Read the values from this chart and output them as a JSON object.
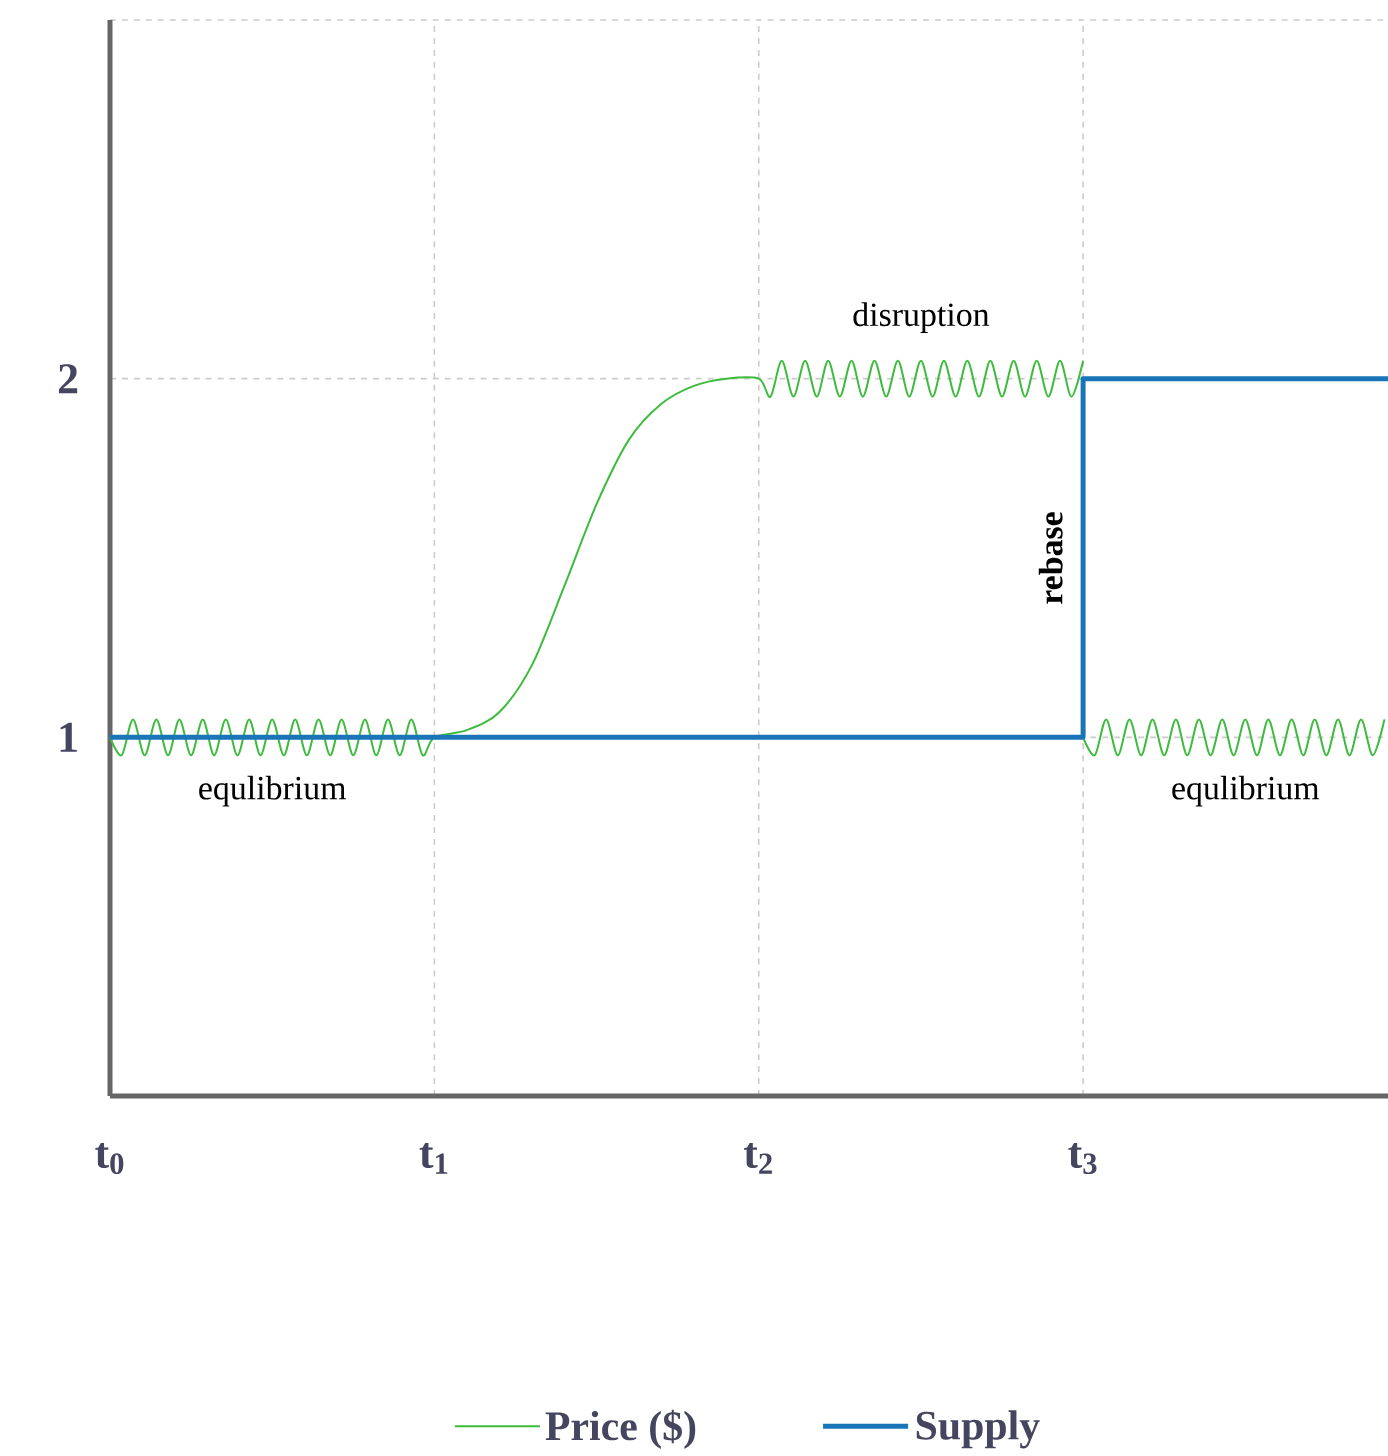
{
  "chart_data": {
    "type": "line",
    "xlim": [
      0,
      3.94
    ],
    "ylim": [
      0,
      3
    ],
    "xticks": [
      {
        "value": 0,
        "label": "t$_{0}$"
      },
      {
        "value": 1,
        "label": "t$_{1}$"
      },
      {
        "value": 2,
        "label": "t$_{2}$"
      },
      {
        "value": 3,
        "label": "t$_{3}$"
      }
    ],
    "yticks": [
      1,
      2,
      {
        "value": 3,
        "label": null
      }
    ],
    "grid": true,
    "legend": "bottom",
    "marker": "none",
    "line_style": "solid",
    "series": [
      {
        "name": "Price ($)",
        "color": "#3dbb3d",
        "x": [
          0,
          0.036,
          0.071,
          0.107,
          0.143,
          0.179,
          0.214,
          0.25,
          0.286,
          0.321,
          0.357,
          0.393,
          0.429,
          0.464,
          0.5,
          0.536,
          0.571,
          0.607,
          0.643,
          0.679,
          0.714,
          0.75,
          0.786,
          0.821,
          0.857,
          0.893,
          0.929,
          0.964,
          1,
          1.1,
          1.2,
          1.3,
          1.4,
          1.5,
          1.6,
          1.7,
          1.8,
          1.9,
          2,
          2.036,
          2.071,
          2.107,
          2.143,
          2.179,
          2.214,
          2.25,
          2.286,
          2.321,
          2.357,
          2.393,
          2.429,
          2.464,
          2.5,
          2.536,
          2.571,
          2.607,
          2.643,
          2.679,
          2.714,
          2.75,
          2.786,
          2.821,
          2.857,
          2.893,
          2.929,
          2.964,
          3
        ],
        "values": [
          1,
          0.95,
          1.05,
          0.95,
          1.05,
          0.95,
          1.05,
          0.95,
          1.05,
          0.95,
          1.05,
          0.95,
          1.05,
          0.95,
          1.05,
          0.95,
          1.05,
          0.95,
          1.05,
          0.95,
          1.05,
          0.95,
          1.05,
          0.95,
          1.05,
          0.95,
          1.05,
          0.95,
          1,
          1.02,
          1.07,
          1.2,
          1.42,
          1.65,
          1.83,
          1.93,
          1.98,
          2,
          2,
          1.95,
          2.05,
          1.95,
          2.05,
          1.95,
          2.05,
          1.95,
          2.05,
          1.95,
          2.05,
          1.95,
          2.05,
          1.95,
          2.05,
          1.95,
          2.05,
          1.95,
          2.05,
          1.95,
          2.05,
          1.95,
          2.05,
          1.95,
          2.05,
          1.95,
          2.05,
          1.95,
          2.05
        ]
      },
      {
        "color": "#3dbb3d",
        "x": [
          3,
          3.036,
          3.071,
          3.107,
          3.143,
          3.179,
          3.214,
          3.25,
          3.286,
          3.321,
          3.357,
          3.393,
          3.429,
          3.464,
          3.5,
          3.536,
          3.571,
          3.607,
          3.643,
          3.679,
          3.714,
          3.75,
          3.786,
          3.821,
          3.857,
          3.893,
          3.929
        ],
        "values": [
          1,
          0.95,
          1.05,
          0.95,
          1.05,
          0.95,
          1.05,
          0.95,
          1.05,
          0.95,
          1.05,
          0.95,
          1.05,
          0.95,
          1.05,
          0.95,
          1.05,
          0.95,
          1.05,
          0.95,
          1.05,
          0.95,
          1.05,
          0.95,
          1.05,
          0.95,
          1.05
        ]
      },
      {
        "name": "Supply",
        "color": "#1a75b8",
        "type": "step",
        "x": [
          0,
          3,
          3.94
        ],
        "values": [
          1,
          2,
          2
        ]
      }
    ],
    "annotations": [
      "equlibrium",
      "disruption",
      "equlibrium",
      "rebase"
    ]
  }
}
